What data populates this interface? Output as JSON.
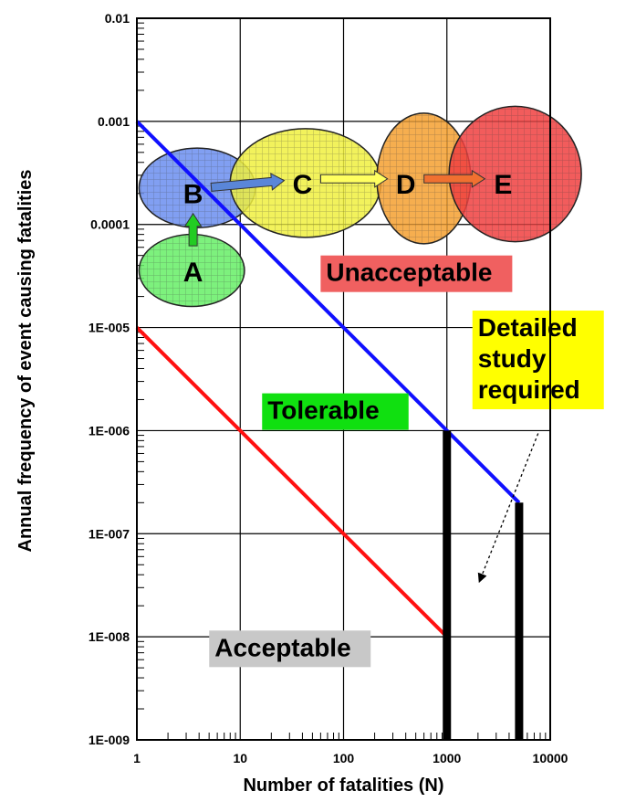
{
  "chart_data": {
    "type": "line",
    "x_scale": "log",
    "y_scale": "log",
    "xlim": [
      1,
      10000
    ],
    "ylim": [
      1e-09,
      0.01
    ],
    "xlabel": "Number of fatalities (N)",
    "ylabel": "Annual frequency of event causing fatalities",
    "x_tick_labels": [
      "1",
      "10",
      "100",
      "1000",
      "10000"
    ],
    "y_tick_labels": [
      "1E-009",
      "1E-008",
      "1E-007",
      "1E-006",
      "1E-005",
      "0.0001",
      "0.001",
      "0.01"
    ],
    "grid": true,
    "series": [
      {
        "points": [
          [
            1,
            0.001
          ],
          [
            5000,
            2e-07
          ]
        ],
        "color": "#1010ff"
      },
      {
        "points": [
          [
            1,
            1e-05
          ],
          [
            1000,
            1e-08
          ]
        ],
        "color": "#ff1010"
      }
    ],
    "vertical_bars": [
      {
        "x": 1000,
        "y_top": 1e-06,
        "color": "#000000"
      },
      {
        "x": 5000,
        "y_top": 2e-07,
        "color": "#000000"
      }
    ],
    "bubbles": [
      {
        "label": "A",
        "x": 3.5,
        "y": 3.5e-05,
        "x_span": [
          1.05,
          11
        ],
        "y_span": [
          1.6e-05,
          8e-05
        ],
        "color": "#66ee66"
      },
      {
        "label": "B",
        "x": 3.5,
        "y": 0.0002,
        "x_span": [
          1.05,
          14
        ],
        "y_span": [
          9.3e-05,
          0.00055
        ],
        "color": "#6b8ef0"
      },
      {
        "label": "C",
        "x": 40,
        "y": 0.00025,
        "x_span": [
          8,
          230
        ],
        "y_span": [
          7.5e-05,
          0.00085
        ],
        "color": "#f0f040"
      },
      {
        "label": "D",
        "x": 400,
        "y": 0.00025,
        "x_span": [
          210,
          1700
        ],
        "y_span": [
          6.5e-05,
          0.0012
        ],
        "color": "#f5a030"
      },
      {
        "label": "E",
        "x": 3500,
        "y": 0.00025,
        "x_span": [
          1050,
          20000
        ],
        "y_span": [
          6.8e-05,
          0.0014
        ],
        "color": "#f04040"
      }
    ],
    "arrows": [
      {
        "from": "A",
        "to": "B",
        "color": "#22cc22"
      },
      {
        "from": "B",
        "to": "C",
        "color": "#5a86d8"
      },
      {
        "from": "C",
        "to": "D",
        "color": "#ffff60"
      },
      {
        "from": "D",
        "to": "E",
        "color": "#f07030"
      }
    ],
    "annotations": [
      {
        "text": "Unacceptable",
        "bg": "#f06060"
      },
      {
        "text": "Tolerable",
        "bg": "#10e010"
      },
      {
        "text": "Acceptable",
        "bg": "#c8c8c8"
      },
      {
        "lines": [
          "Detailed",
          "study",
          "required"
        ],
        "bg": "#ffff00"
      }
    ]
  }
}
